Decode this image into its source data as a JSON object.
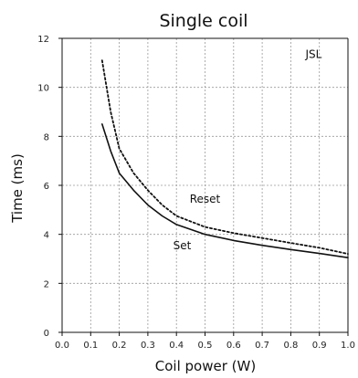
{
  "chart_data": {
    "type": "line",
    "title": "Single coil",
    "xlabel": "Coil power (W)",
    "ylabel": "Time (ms)",
    "xlim": [
      0,
      1.0
    ],
    "ylim": [
      0,
      12
    ],
    "x_ticks": [
      "0.0",
      "0.1",
      "0.2",
      "0.3",
      "0.4",
      "0.5",
      "0.6",
      "0.7",
      "0.8",
      "0.9",
      "1.0"
    ],
    "y_ticks": [
      "0",
      "2",
      "4",
      "6",
      "8",
      "10",
      "12"
    ],
    "grid": true,
    "annotations": [
      {
        "text": "JSL",
        "x": 0.88,
        "y": 11.2
      },
      {
        "text": "Reset",
        "x": 0.5,
        "y": 5.3
      },
      {
        "text": "Set",
        "x": 0.42,
        "y": 3.4
      }
    ],
    "series": [
      {
        "name": "Reset",
        "style": "dotted",
        "color": "#111111",
        "x": [
          0.14,
          0.17,
          0.2,
          0.25,
          0.3,
          0.35,
          0.4,
          0.5,
          0.6,
          0.7,
          0.8,
          0.9,
          1.0
        ],
        "y": [
          11.1,
          9.0,
          7.5,
          6.5,
          5.8,
          5.2,
          4.75,
          4.3,
          4.05,
          3.85,
          3.65,
          3.45,
          3.2
        ]
      },
      {
        "name": "Set",
        "style": "solid",
        "color": "#111111",
        "x": [
          0.14,
          0.17,
          0.2,
          0.25,
          0.3,
          0.35,
          0.4,
          0.5,
          0.6,
          0.7,
          0.8,
          0.9,
          1.0
        ],
        "y": [
          8.5,
          7.4,
          6.5,
          5.8,
          5.2,
          4.75,
          4.4,
          4.0,
          3.75,
          3.55,
          3.38,
          3.22,
          3.05
        ]
      }
    ]
  }
}
